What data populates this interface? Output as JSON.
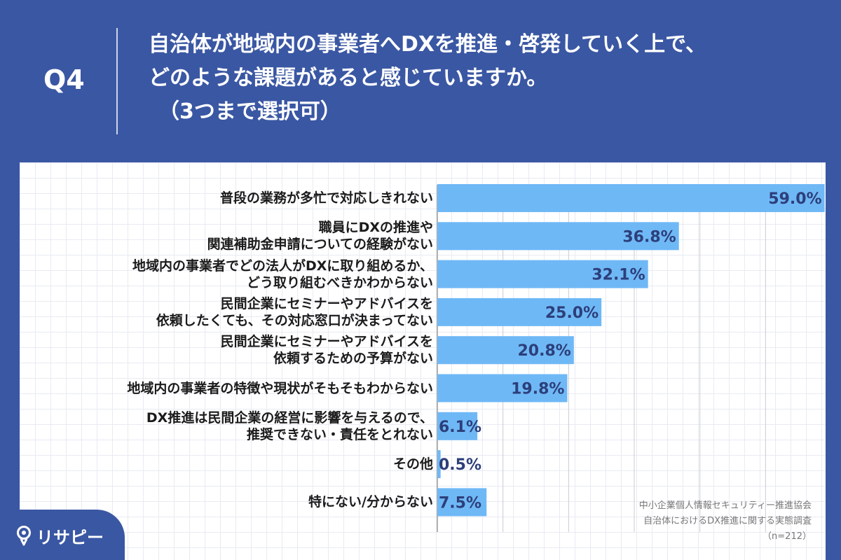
{
  "header": {
    "q_label": "Q4",
    "question_line1": "自治体が地域内の事業者へDXを推進・啓発していく上で、",
    "question_line2": "どのような課題があると感じていますか。",
    "question_note": "（3つまで選択可）"
  },
  "source": {
    "line1": "中小企業個人情報セキュリティー推進協会",
    "line2": "自治体におけるDX推進に関する実態調査",
    "line3": "（n=212）"
  },
  "brand": {
    "name": "リサピー",
    "icon": "pin-icon"
  },
  "colors": {
    "header_bg": "#3a57a3",
    "bar": "#6fb8f6",
    "value_text": "#2c3f7a",
    "label_text": "#1b1b1b"
  },
  "chart_data": {
    "type": "bar",
    "orientation": "horizontal",
    "title": "",
    "xlabel": "",
    "ylabel": "",
    "xlim": [
      0,
      60
    ],
    "grid": true,
    "categories": [
      [
        "普段の業務が多忙で対応しきれない"
      ],
      [
        "職員にDXの推進や",
        "関連補助金申請についての経験がない"
      ],
      [
        "地域内の事業者でどの法人がDXに取り組めるか、",
        "どう取り組むべきかわからない"
      ],
      [
        "民間企業にセミナーやアドバイスを",
        "依頼したくても、その対応窓口が決まってない"
      ],
      [
        "民間企業にセミナーやアドバイスを",
        "依頼するための予算がない"
      ],
      [
        "地域内の事業者の特徴や現状がそもそもわからない"
      ],
      [
        "DX推進は民間企業の経営に影響を与えるので、",
        "推奨できない・責任をとれない"
      ],
      [
        "その他"
      ],
      [
        "特にない/分からない"
      ]
    ],
    "values": [
      59.0,
      36.8,
      32.1,
      25.0,
      20.8,
      19.8,
      6.1,
      0.5,
      7.5
    ],
    "value_labels": [
      "59.0%",
      "36.8%",
      "32.1%",
      "25.0%",
      "20.8%",
      "19.8%",
      "6.1%",
      "0.5%",
      "7.5%"
    ]
  }
}
